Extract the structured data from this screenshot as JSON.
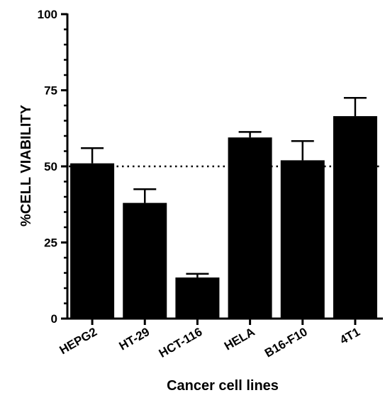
{
  "chart_data": {
    "type": "bar",
    "categories": [
      "HEPG2",
      "HT-29",
      "HCT-116",
      "HELA",
      "B16-F10",
      "4T1"
    ],
    "values": [
      51,
      38,
      13.5,
      59.5,
      52,
      66.5
    ],
    "error": [
      5,
      4.5,
      1.2,
      1.8,
      6.3,
      6
    ],
    "xlabel": "Cancer cell lines",
    "ylabel": "%CELL VIABILITY",
    "ylim": [
      0,
      100
    ],
    "yticks": [
      0,
      25,
      50,
      75,
      100
    ],
    "yticks_labels": [
      "0",
      "25",
      "50",
      "75",
      "100"
    ],
    "reference_line": 50,
    "grid": false,
    "bar_color": "#000000"
  }
}
